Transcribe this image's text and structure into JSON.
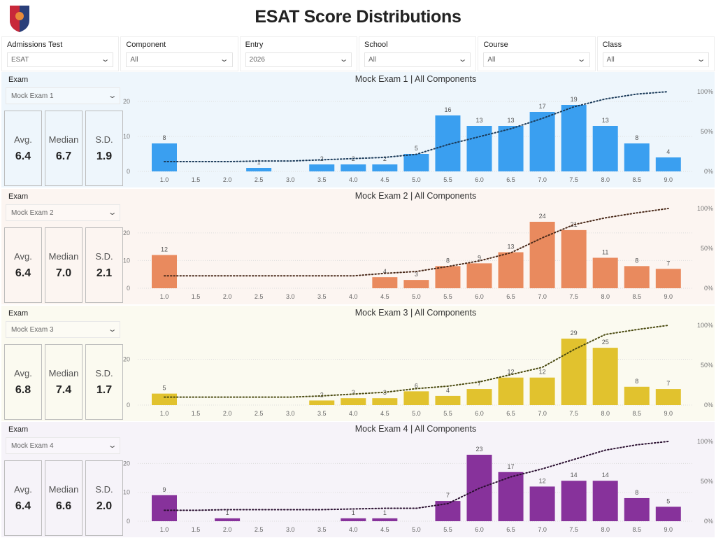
{
  "header": {
    "title": "ESAT Score Distributions",
    "logo_icon": "shield-crest-logo"
  },
  "filters": [
    {
      "label": "Admissions Test",
      "value": "ESAT"
    },
    {
      "label": "Component",
      "value": "All"
    },
    {
      "label": "Entry",
      "value": "2026"
    },
    {
      "label": "School",
      "value": "All"
    },
    {
      "label": "Course",
      "value": "All"
    },
    {
      "label": "Class",
      "value": "All"
    }
  ],
  "panels": [
    {
      "exam_label": "Exam",
      "exam_value": "Mock Exam 1",
      "stats": {
        "avg_label": "Avg.",
        "avg": "6.4",
        "median_label": "Median",
        "median": "6.7",
        "sd_label": "S.D.",
        "sd": "1.9"
      }
    },
    {
      "exam_label": "Exam",
      "exam_value": "Mock Exam 2",
      "stats": {
        "avg_label": "Avg.",
        "avg": "6.4",
        "median_label": "Median",
        "median": "7.0",
        "sd_label": "S.D.",
        "sd": "2.1"
      }
    },
    {
      "exam_label": "Exam",
      "exam_value": "Mock Exam 3",
      "stats": {
        "avg_label": "Avg.",
        "avg": "6.8",
        "median_label": "Median",
        "median": "7.4",
        "sd_label": "S.D.",
        "sd": "1.7"
      }
    },
    {
      "exam_label": "Exam",
      "exam_value": "Mock Exam 4",
      "stats": {
        "avg_label": "Avg.",
        "avg": "6.4",
        "median_label": "Median",
        "median": "6.6",
        "sd_label": "S.D.",
        "sd": "2.0"
      }
    }
  ],
  "chart_data": [
    {
      "type": "bar",
      "title": "Mock Exam 1 | All Components",
      "categories": [
        "1.0",
        "1.5",
        "2.0",
        "2.5",
        "3.0",
        "3.5",
        "4.0",
        "4.5",
        "5.0",
        "5.5",
        "6.0",
        "6.5",
        "7.0",
        "7.5",
        "8.0",
        "8.5",
        "9.0"
      ],
      "values": [
        8,
        0,
        0,
        1,
        0,
        2,
        2,
        2,
        5,
        16,
        13,
        13,
        17,
        19,
        13,
        8,
        4
      ],
      "y_ticks": [
        0,
        10,
        20
      ],
      "y2_ticks": [
        "0%",
        "50%",
        "100%"
      ],
      "secondary": "cumulative % line",
      "grid": true,
      "color": "#3a9ff0",
      "line_color": "#1b3b5a",
      "background": "#eef6fc"
    },
    {
      "type": "bar",
      "title": "Mock Exam 2 | All Components",
      "categories": [
        "1.0",
        "1.5",
        "2.0",
        "2.5",
        "3.0",
        "3.5",
        "4.0",
        "4.5",
        "5.0",
        "5.5",
        "6.0",
        "6.5",
        "7.0",
        "7.5",
        "8.0",
        "8.5",
        "9.0"
      ],
      "values": [
        12,
        0,
        0,
        0,
        0,
        0,
        0,
        4,
        3,
        8,
        9,
        13,
        24,
        21,
        11,
        8,
        7
      ],
      "y_ticks": [
        0,
        10,
        20
      ],
      "y2_ticks": [
        "0%",
        "50%",
        "100%"
      ],
      "secondary": "cumulative % line",
      "grid": true,
      "color": "#e98a5e",
      "line_color": "#4a2a1a",
      "background": "#fcf5f1"
    },
    {
      "type": "bar",
      "title": "Mock Exam 3 | All Components",
      "categories": [
        "1.0",
        "1.5",
        "2.0",
        "2.5",
        "3.0",
        "3.5",
        "4.0",
        "4.5",
        "5.0",
        "5.5",
        "6.0",
        "6.5",
        "7.0",
        "7.5",
        "8.0",
        "8.5",
        "9.0"
      ],
      "values": [
        5,
        0,
        0,
        0,
        0,
        2,
        3,
        3,
        6,
        4,
        7,
        12,
        12,
        29,
        25,
        8,
        7
      ],
      "y_ticks": [
        0,
        20
      ],
      "y2_ticks": [
        "0%",
        "50%",
        "100%"
      ],
      "secondary": "cumulative % line",
      "grid": true,
      "color": "#e1c22e",
      "line_color": "#4a4a10",
      "background": "#fbfaf0"
    },
    {
      "type": "bar",
      "title": "Mock Exam 4 | All Components",
      "categories": [
        "1.0",
        "1.5",
        "2.0",
        "2.5",
        "3.0",
        "3.5",
        "4.0",
        "4.5",
        "5.0",
        "5.5",
        "6.0",
        "6.5",
        "7.0",
        "7.5",
        "8.0",
        "8.5",
        "9.0"
      ],
      "values": [
        9,
        0,
        1,
        0,
        0,
        0,
        1,
        1,
        0,
        7,
        23,
        17,
        12,
        14,
        14,
        8,
        5
      ],
      "y_ticks": [
        0,
        10,
        20
      ],
      "y2_ticks": [
        "0%",
        "50%",
        "100%"
      ],
      "secondary": "cumulative % line",
      "grid": true,
      "color": "#87329b",
      "line_color": "#2a0f30",
      "background": "#f6f3f9"
    }
  ]
}
